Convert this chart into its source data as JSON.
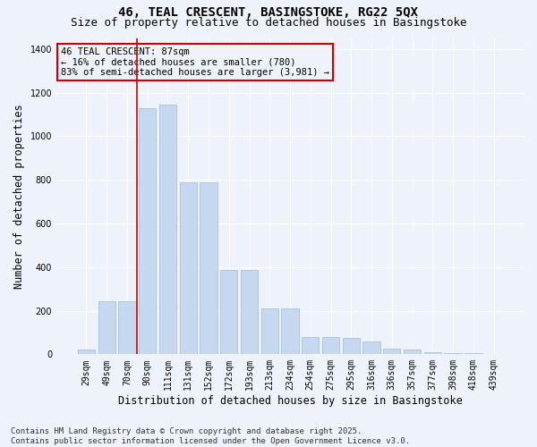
{
  "title1": "46, TEAL CRESCENT, BASINGSTOKE, RG22 5QX",
  "title2": "Size of property relative to detached houses in Basingstoke",
  "xlabel": "Distribution of detached houses by size in Basingstoke",
  "ylabel": "Number of detached properties",
  "categories": [
    "29sqm",
    "49sqm",
    "70sqm",
    "90sqm",
    "111sqm",
    "131sqm",
    "152sqm",
    "172sqm",
    "193sqm",
    "213sqm",
    "234sqm",
    "254sqm",
    "275sqm",
    "295sqm",
    "316sqm",
    "336sqm",
    "357sqm",
    "377sqm",
    "398sqm",
    "418sqm",
    "439sqm"
  ],
  "values": [
    20,
    245,
    245,
    1130,
    1145,
    790,
    790,
    385,
    385,
    210,
    210,
    80,
    80,
    75,
    60,
    28,
    22,
    10,
    7,
    4,
    2
  ],
  "bar_color": "#c5d8f0",
  "bar_edge_color": "#a0b8d8",
  "vline_x_index": 2.5,
  "vline_color": "#cc0000",
  "annotation_line1": "46 TEAL CRESCENT: 87sqm",
  "annotation_line2": "← 16% of detached houses are smaller (780)",
  "annotation_line3": "83% of semi-detached houses are larger (3,981) →",
  "annotation_box_color": "#cc0000",
  "ylim": [
    0,
    1450
  ],
  "yticks": [
    0,
    200,
    400,
    600,
    800,
    1000,
    1200,
    1400
  ],
  "footer": "Contains HM Land Registry data © Crown copyright and database right 2025.\nContains public sector information licensed under the Open Government Licence v3.0.",
  "bg_color": "#eef2fa",
  "grid_color": "#ffffff",
  "title_fontsize": 10,
  "subtitle_fontsize": 9,
  "tick_fontsize": 7,
  "label_fontsize": 8.5,
  "footer_fontsize": 6.5,
  "ann_fontsize": 7.5
}
